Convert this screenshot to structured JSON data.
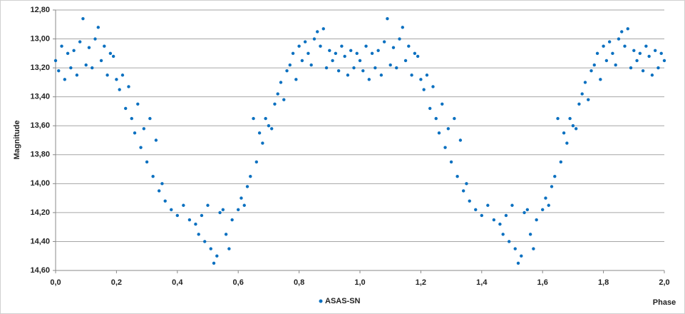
{
  "chart_data": {
    "type": "scatter",
    "y_label": "Magnitude",
    "x_label": "Phase",
    "xlim": [
      0,
      2
    ],
    "ylim": [
      14.6,
      12.8
    ],
    "grid": true,
    "legend": "bottom",
    "xticks": [
      {
        "value": 0,
        "label": "0,0"
      },
      {
        "value": 0.2,
        "label": "0,2"
      },
      {
        "value": 0.4,
        "label": "0,4"
      },
      {
        "value": 0.6,
        "label": "0,6"
      },
      {
        "value": 0.8,
        "label": "0,8"
      },
      {
        "value": 1,
        "label": "1,0"
      },
      {
        "value": 1.2,
        "label": "1,2"
      },
      {
        "value": 1.4,
        "label": "1,4"
      },
      {
        "value": 1.6,
        "label": "1,6"
      },
      {
        "value": 1.8,
        "label": "1,8"
      },
      {
        "value": 2,
        "label": "2,0"
      }
    ],
    "yticks": [
      {
        "value": 12.8,
        "label": "12,80"
      },
      {
        "value": 13,
        "label": "13,00"
      },
      {
        "value": 13.2,
        "label": "13,20"
      },
      {
        "value": 13.4,
        "label": "13,40"
      },
      {
        "value": 13.6,
        "label": "13,60"
      },
      {
        "value": 13.8,
        "label": "13,80"
      },
      {
        "value": 14,
        "label": "14,00"
      },
      {
        "value": 14.2,
        "label": "14,20"
      },
      {
        "value": 14.4,
        "label": "14,40"
      },
      {
        "value": 14.6,
        "label": "14,60"
      }
    ],
    "series": [
      {
        "name": "ASAS-SN",
        "color": "#0a70c0",
        "x": [
          0.0,
          0.01,
          0.02,
          0.03,
          0.04,
          0.05,
          0.06,
          0.07,
          0.08,
          0.09,
          0.1,
          0.11,
          0.12,
          0.13,
          0.14,
          0.15,
          0.16,
          0.17,
          0.18,
          0.19,
          0.2,
          0.21,
          0.22,
          0.23,
          0.24,
          0.25,
          0.26,
          0.27,
          0.28,
          0.29,
          0.3,
          0.31,
          0.32,
          0.33,
          0.34,
          0.35,
          0.36,
          0.38,
          0.4,
          0.42,
          0.44,
          0.46,
          0.47,
          0.48,
          0.49,
          0.5,
          0.51,
          0.52,
          0.53,
          0.54,
          0.55,
          0.56,
          0.57,
          0.58,
          0.6,
          0.61,
          0.62,
          0.63,
          0.64,
          0.65,
          0.66,
          0.67,
          0.68,
          0.69,
          0.7,
          0.71,
          0.72,
          0.73,
          0.74,
          0.75,
          0.76,
          0.77,
          0.78,
          0.79,
          0.8,
          0.81,
          0.82,
          0.83,
          0.84,
          0.85,
          0.86,
          0.87,
          0.88,
          0.89,
          0.9,
          0.91,
          0.92,
          0.93,
          0.94,
          0.95,
          0.96,
          0.97,
          0.98,
          0.99,
          1.0,
          1.01,
          1.02,
          1.03,
          1.04,
          1.05,
          1.06,
          1.07,
          1.08,
          1.09,
          1.1,
          1.11,
          1.12,
          1.13,
          1.14,
          1.15,
          1.16,
          1.17,
          1.18,
          1.19,
          1.2,
          1.21,
          1.22,
          1.23,
          1.24,
          1.25,
          1.26,
          1.27,
          1.28,
          1.29,
          1.3,
          1.31,
          1.32,
          1.33,
          1.34,
          1.35,
          1.36,
          1.38,
          1.4,
          1.42,
          1.44,
          1.46,
          1.47,
          1.48,
          1.49,
          1.5,
          1.51,
          1.52,
          1.53,
          1.54,
          1.55,
          1.56,
          1.57,
          1.58,
          1.6,
          1.61,
          1.62,
          1.63,
          1.64,
          1.65,
          1.66,
          1.67,
          1.68,
          1.69,
          1.7,
          1.71,
          1.72,
          1.73,
          1.74,
          1.75,
          1.76,
          1.77,
          1.78,
          1.79,
          1.8,
          1.81,
          1.82,
          1.83,
          1.84,
          1.85,
          1.86,
          1.87,
          1.88,
          1.89,
          1.9,
          1.91,
          1.92,
          1.93,
          1.94,
          1.95,
          1.96,
          1.97,
          1.98,
          1.99,
          2.0
        ],
        "values": [
          13.15,
          13.22,
          13.05,
          13.28,
          13.1,
          13.2,
          13.08,
          13.25,
          13.02,
          12.86,
          13.18,
          13.06,
          13.2,
          13.0,
          12.92,
          13.15,
          13.05,
          13.25,
          13.1,
          13.12,
          13.28,
          13.35,
          13.25,
          13.48,
          13.33,
          13.55,
          13.65,
          13.45,
          13.75,
          13.62,
          13.85,
          13.55,
          13.95,
          13.7,
          14.05,
          14.0,
          14.12,
          14.18,
          14.22,
          14.15,
          14.25,
          14.28,
          14.35,
          14.22,
          14.4,
          14.15,
          14.45,
          14.55,
          14.5,
          14.2,
          14.18,
          14.35,
          14.45,
          14.25,
          14.18,
          14.1,
          14.15,
          14.02,
          13.95,
          13.55,
          13.85,
          13.65,
          13.72,
          13.55,
          13.6,
          13.62,
          13.45,
          13.38,
          13.3,
          13.42,
          13.22,
          13.18,
          13.1,
          13.28,
          13.05,
          13.15,
          13.02,
          13.1,
          13.18,
          13.0,
          12.95,
          13.05,
          12.93,
          13.2,
          13.08,
          13.15,
          13.1,
          13.22,
          13.05,
          13.12,
          13.25,
          13.08,
          13.2,
          13.1,
          13.15,
          13.22,
          13.05,
          13.28,
          13.1,
          13.2,
          13.08,
          13.25,
          13.02,
          12.86,
          13.18,
          13.06,
          13.2,
          13.0,
          12.92,
          13.15,
          13.05,
          13.25,
          13.1,
          13.12,
          13.28,
          13.35,
          13.25,
          13.48,
          13.33,
          13.55,
          13.65,
          13.45,
          13.75,
          13.62,
          13.85,
          13.55,
          13.95,
          13.7,
          14.05,
          14.0,
          14.12,
          14.18,
          14.22,
          14.15,
          14.25,
          14.28,
          14.35,
          14.22,
          14.4,
          14.15,
          14.45,
          14.55,
          14.5,
          14.2,
          14.18,
          14.35,
          14.45,
          14.25,
          14.18,
          14.1,
          14.15,
          14.02,
          13.95,
          13.55,
          13.85,
          13.65,
          13.72,
          13.55,
          13.6,
          13.62,
          13.45,
          13.38,
          13.3,
          13.42,
          13.22,
          13.18,
          13.1,
          13.28,
          13.05,
          13.15,
          13.02,
          13.1,
          13.18,
          13.0,
          12.95,
          13.05,
          12.93,
          13.2,
          13.08,
          13.15,
          13.1,
          13.22,
          13.05,
          13.12,
          13.25,
          13.08,
          13.2,
          13.1,
          13.15
        ]
      }
    ]
  }
}
